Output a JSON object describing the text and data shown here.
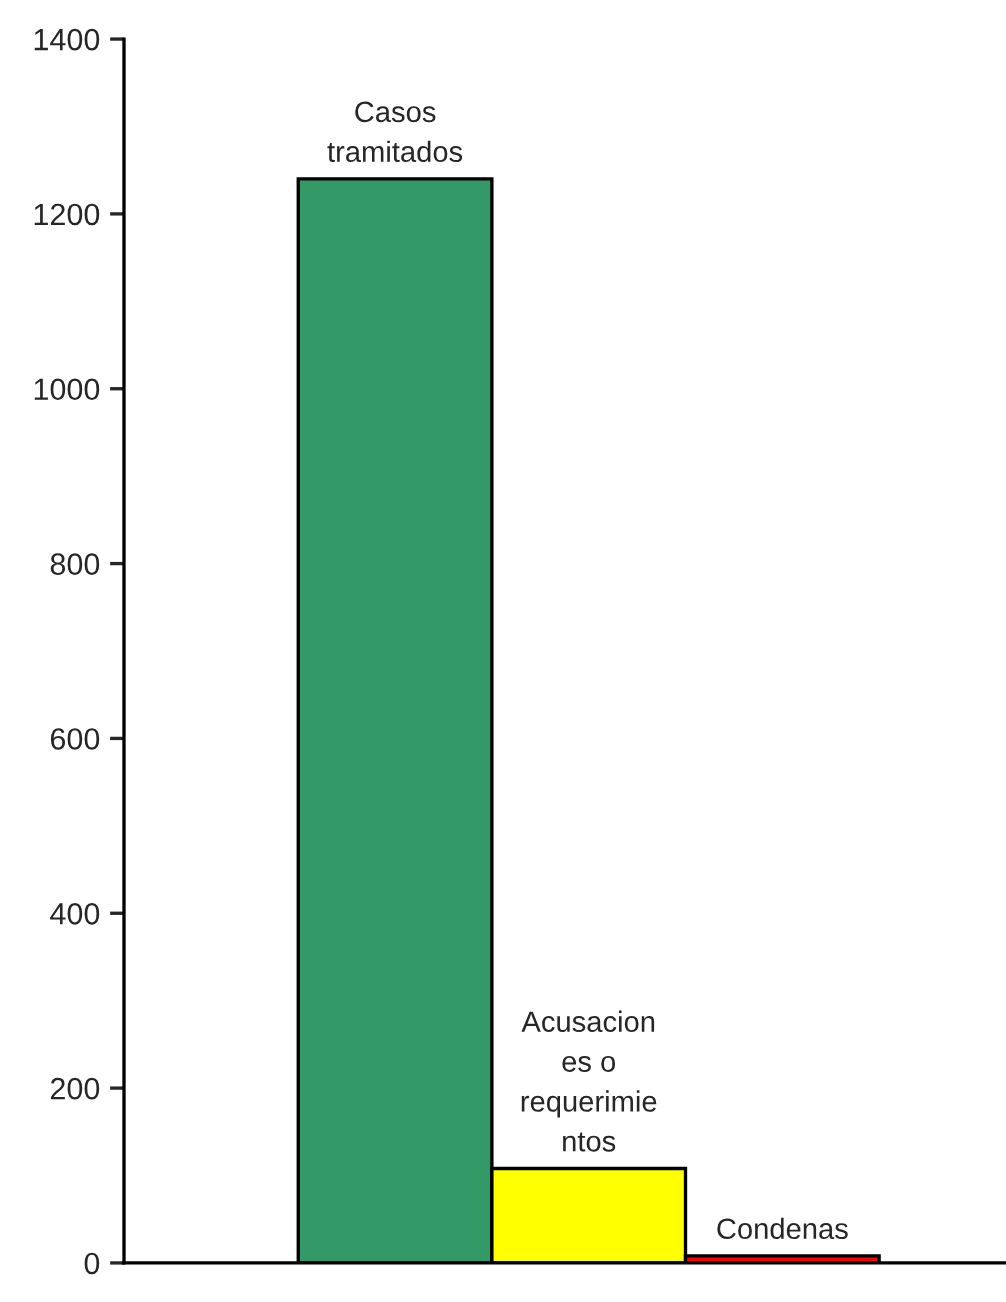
{
  "chart_data": {
    "type": "bar",
    "categories": [
      "Casos tramitados",
      "Acusaciones o requerimientos",
      "Condenas"
    ],
    "values": [
      1240,
      108,
      8
    ],
    "colors": [
      "#339966",
      "#ffff00",
      "#ff0000"
    ],
    "ylim": [
      0,
      1400
    ],
    "yticks": [
      0,
      200,
      400,
      600,
      800,
      1000,
      1200,
      1400
    ],
    "grid": false
  }
}
